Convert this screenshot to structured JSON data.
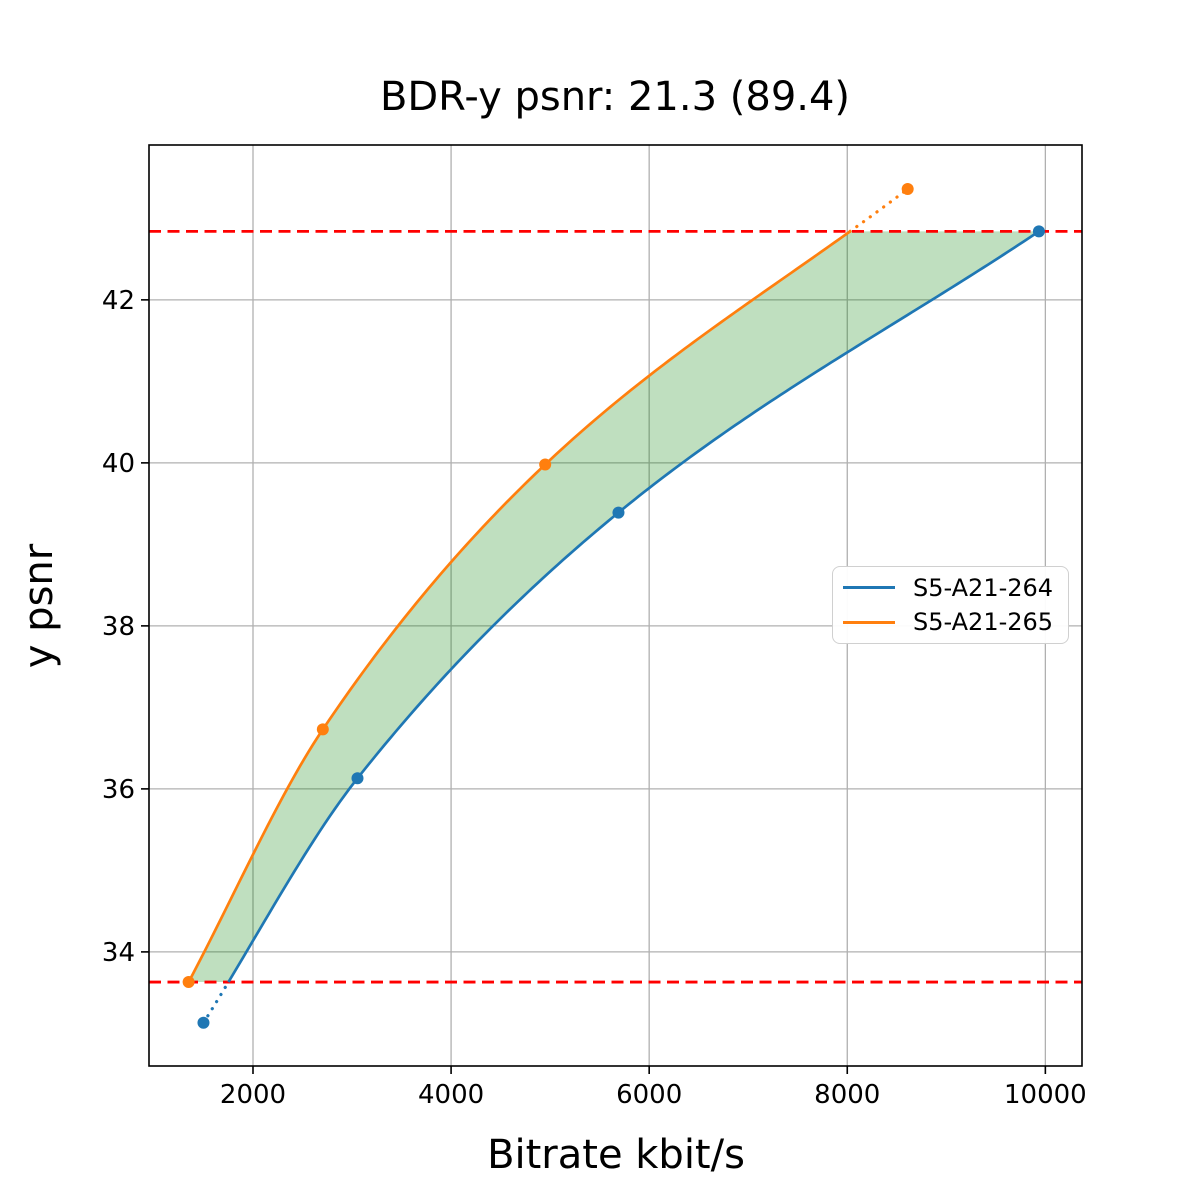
{
  "chart_data": {
    "type": "line",
    "title": "BDR-y psnr: 21.3 (89.4)",
    "xlabel": "Bitrate kbit/s",
    "ylabel": "y psnr",
    "xlim": [
      950,
      10370
    ],
    "ylim": [
      32.6,
      43.9
    ],
    "xticks": [
      2000,
      4000,
      6000,
      8000,
      10000
    ],
    "yticks": [
      34,
      36,
      38,
      40,
      42
    ],
    "grid": true,
    "grid_color": "#b0b0b0",
    "interpolation": "pchip",
    "series": [
      {
        "name": "S5-A21-264",
        "color": "#1f77b4",
        "marker": "circle",
        "points": [
          [
            1500,
            33.13
          ],
          [
            3055,
            36.13
          ],
          [
            5690,
            39.39
          ],
          [
            9935,
            42.84
          ]
        ]
      },
      {
        "name": "S5-A21-265",
        "color": "#ff7f0e",
        "marker": "circle",
        "points": [
          [
            1350,
            33.63
          ],
          [
            2705,
            36.73
          ],
          [
            4950,
            39.98
          ],
          [
            8610,
            43.36
          ]
        ]
      }
    ],
    "bd_interval_lines": {
      "values": [
        33.63,
        42.84
      ],
      "color": "#ff0000",
      "style": "dashed"
    },
    "fill_between": {
      "color": "#008000",
      "opacity": 0.25
    },
    "legend_position": "center-right"
  }
}
